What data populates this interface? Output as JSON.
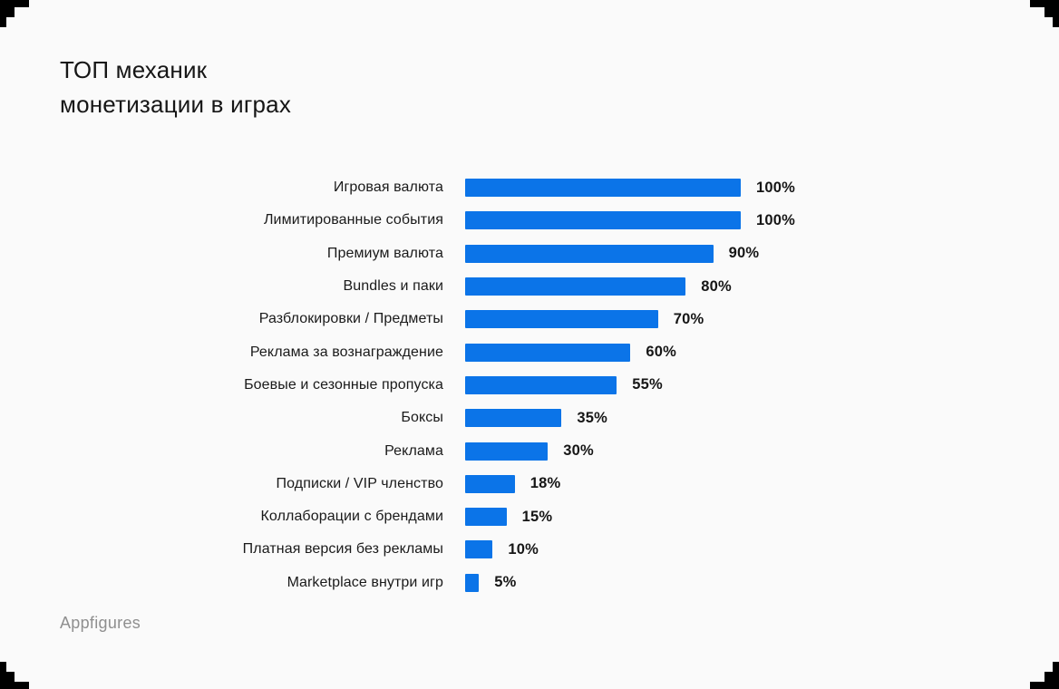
{
  "title": {
    "line1": "ТОП механик",
    "line2": "монетизации в играх"
  },
  "source": "Appfigures",
  "colors": {
    "background": "#FAFAFA",
    "bar": "#0B74E8",
    "title_text": "#161616",
    "label_text": "#1A1A1A",
    "source_text": "#8F8F8F",
    "corner": "#000000"
  },
  "chart_data": {
    "type": "bar",
    "orientation": "horizontal",
    "title": "ТОП механик монетизации в играх",
    "xlabel": "",
    "ylabel": "",
    "xlim": [
      0,
      100
    ],
    "grid": false,
    "legend": false,
    "categories": [
      "Игровая валюта",
      "Лимитированные события",
      "Премиум валюта",
      "Bundles и паки",
      "Разблокировки / Предметы",
      "Реклама за вознаграждение",
      "Боевые и сезонные пропуска",
      "Боксы",
      "Реклама",
      "Подписки / VIP членство",
      "Коллаборации с брендами",
      "Платная версия без рекламы",
      "Marketplace внутри игр"
    ],
    "values": [
      100,
      100,
      90,
      80,
      70,
      60,
      55,
      35,
      30,
      18,
      15,
      10,
      5
    ],
    "value_labels": [
      "100%",
      "100%",
      "90%",
      "80%",
      "70%",
      "60%",
      "55%",
      "35%",
      "30%",
      "18%",
      "15%",
      "10%",
      "5%"
    ]
  }
}
